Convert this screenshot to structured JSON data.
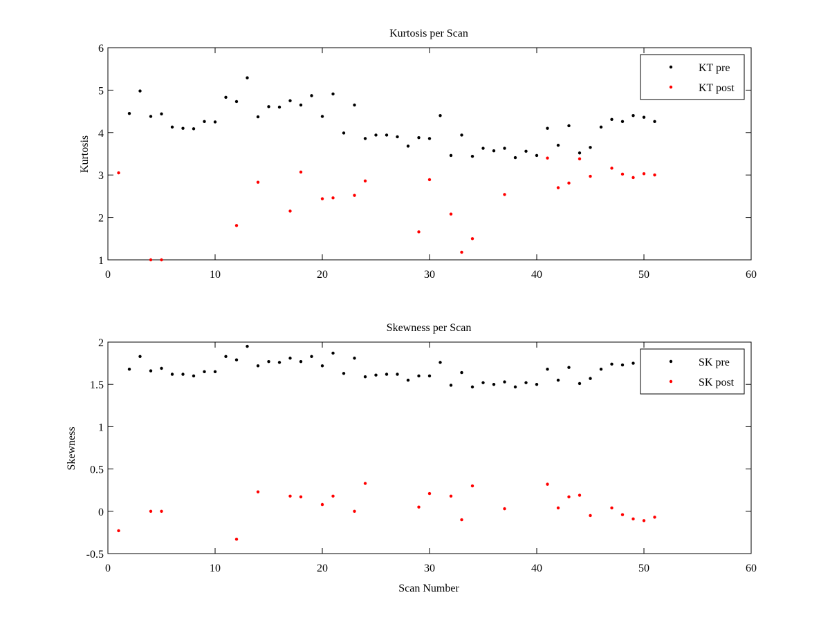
{
  "chart_data": [
    {
      "type": "scatter",
      "title": "Kurtosis per Scan",
      "xlabel": "",
      "ylabel": "Kurtosis",
      "xlim": [
        0,
        60
      ],
      "ylim": [
        1,
        6
      ],
      "xticks": [
        0,
        10,
        20,
        30,
        40,
        50,
        60
      ],
      "xtick_labels": [
        "0",
        "10",
        "20",
        "30",
        "40",
        "50",
        "60"
      ],
      "yticks": [
        1,
        2,
        3,
        4,
        5,
        6
      ],
      "ytick_labels": [
        "1",
        "2",
        "3",
        "4",
        "5",
        "6"
      ],
      "grid": false,
      "legend_position": "top-right",
      "series": [
        {
          "name": "KT pre",
          "color": "#000000",
          "x": [
            2,
            3,
            4,
            5,
            6,
            7,
            8,
            9,
            10,
            11,
            12,
            13,
            14,
            15,
            16,
            17,
            18,
            19,
            20,
            21,
            22,
            23,
            24,
            25,
            26,
            27,
            28,
            29,
            30,
            31,
            32,
            33,
            34,
            35,
            36,
            37,
            38,
            39,
            40,
            41,
            42,
            43,
            44,
            45,
            46,
            47,
            48,
            49,
            50,
            51
          ],
          "y": [
            4.45,
            4.98,
            4.38,
            4.44,
            4.13,
            4.1,
            4.09,
            4.26,
            4.25,
            4.83,
            4.73,
            5.29,
            4.37,
            4.61,
            4.6,
            4.75,
            4.65,
            4.87,
            4.38,
            4.91,
            3.99,
            4.65,
            3.86,
            3.94,
            3.94,
            3.9,
            3.68,
            3.88,
            3.86,
            4.4,
            3.46,
            3.94,
            3.44,
            3.63,
            3.57,
            3.63,
            3.41,
            3.56,
            3.46,
            4.1,
            3.7,
            4.16,
            3.52,
            3.65,
            4.13,
            4.31,
            4.26,
            4.4,
            4.36,
            4.26
          ]
        },
        {
          "name": "KT post",
          "color": "#ff0000",
          "x": [
            1,
            4,
            5,
            12,
            14,
            17,
            18,
            20,
            21,
            23,
            24,
            29,
            30,
            32,
            33,
            34,
            37,
            41,
            42,
            43,
            44,
            45,
            47,
            48,
            49,
            50,
            51
          ],
          "y": [
            3.05,
            1.0,
            1.0,
            1.81,
            2.83,
            2.15,
            3.07,
            2.44,
            2.46,
            2.52,
            2.86,
            1.66,
            2.89,
            2.08,
            1.18,
            1.5,
            2.54,
            3.4,
            2.7,
            2.81,
            3.38,
            2.97,
            3.16,
            3.02,
            2.94,
            3.03,
            3.0
          ]
        }
      ]
    },
    {
      "type": "scatter",
      "title": "Skewness per Scan",
      "xlabel": "Scan Number",
      "ylabel": "Skewness",
      "xlim": [
        0,
        60
      ],
      "ylim": [
        -0.5,
        2
      ],
      "xticks": [
        0,
        10,
        20,
        30,
        40,
        50,
        60
      ],
      "xtick_labels": [
        "0",
        "10",
        "20",
        "30",
        "40",
        "50",
        "60"
      ],
      "yticks": [
        -0.5,
        0,
        0.5,
        1,
        1.5,
        2
      ],
      "ytick_labels": [
        "-0.5",
        "0",
        "0.5",
        "1",
        "1.5",
        "2"
      ],
      "grid": false,
      "legend_position": "top-right",
      "series": [
        {
          "name": "SK pre",
          "color": "#000000",
          "x": [
            2,
            3,
            4,
            5,
            6,
            7,
            8,
            9,
            10,
            11,
            12,
            13,
            14,
            15,
            16,
            17,
            18,
            19,
            20,
            21,
            22,
            23,
            24,
            25,
            26,
            27,
            28,
            29,
            30,
            31,
            32,
            33,
            34,
            35,
            36,
            37,
            38,
            39,
            40,
            41,
            42,
            43,
            44,
            45,
            46,
            47,
            48,
            49
          ],
          "y": [
            1.68,
            1.83,
            1.66,
            1.69,
            1.62,
            1.62,
            1.6,
            1.65,
            1.65,
            1.83,
            1.79,
            1.95,
            1.72,
            1.77,
            1.76,
            1.81,
            1.77,
            1.83,
            1.72,
            1.87,
            1.63,
            1.81,
            1.59,
            1.61,
            1.62,
            1.62,
            1.55,
            1.6,
            1.6,
            1.76,
            1.49,
            1.64,
            1.47,
            1.52,
            1.5,
            1.53,
            1.47,
            1.52,
            1.5,
            1.68,
            1.55,
            1.7,
            1.51,
            1.57,
            1.68,
            1.74,
            1.73,
            1.75
          ]
        },
        {
          "name": "SK post",
          "color": "#ff0000",
          "x": [
            1,
            4,
            5,
            12,
            14,
            17,
            18,
            20,
            21,
            23,
            24,
            29,
            30,
            32,
            33,
            34,
            37,
            41,
            42,
            43,
            44,
            45,
            47,
            48,
            49,
            50,
            51
          ],
          "y": [
            -0.23,
            0.0,
            0.0,
            -0.33,
            0.23,
            0.18,
            0.17,
            0.08,
            0.18,
            0.0,
            0.33,
            0.05,
            0.21,
            0.18,
            -0.1,
            0.3,
            0.03,
            0.32,
            0.04,
            0.17,
            0.19,
            -0.05,
            0.04,
            -0.04,
            -0.09,
            -0.11,
            -0.07
          ]
        }
      ]
    }
  ]
}
